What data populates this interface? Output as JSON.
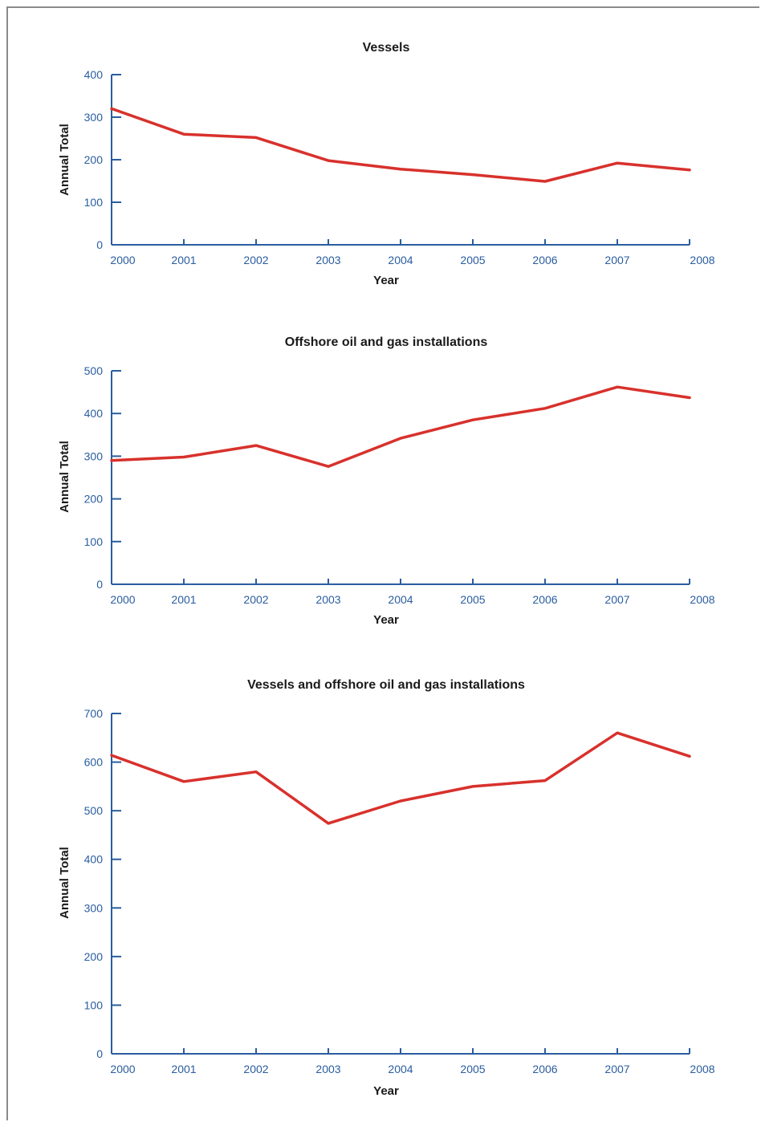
{
  "colors": {
    "line": "#d8312c",
    "axis": "#2a5d9f",
    "text": "#1a1a1a"
  },
  "chart_data": [
    {
      "type": "line",
      "title": "Vessels",
      "xlabel": "Year",
      "ylabel": "Annual Total",
      "x": [
        "2000",
        "2001",
        "2002",
        "2003",
        "2004",
        "2005",
        "2006",
        "2007",
        "2008"
      ],
      "series": [
        {
          "values": [
            320,
            260,
            252,
            198,
            178,
            165,
            149,
            192,
            176
          ]
        }
      ],
      "ylim": [
        0,
        400
      ],
      "yticks": [
        "0",
        "100",
        "200",
        "300",
        "400"
      ]
    },
    {
      "type": "line",
      "title": "Offshore oil and gas installations",
      "xlabel": "Year",
      "ylabel": "Annual Total",
      "x": [
        "2000",
        "2001",
        "2002",
        "2003",
        "2004",
        "2005",
        "2006",
        "2007",
        "2008"
      ],
      "series": [
        {
          "values": [
            290,
            298,
            325,
            276,
            342,
            385,
            412,
            462,
            437
          ]
        }
      ],
      "ylim": [
        0,
        500
      ],
      "yticks": [
        "0",
        "100",
        "200",
        "300",
        "400",
        "500"
      ]
    },
    {
      "type": "line",
      "title": "Vessels and offshore oil and gas installations",
      "xlabel": "Year",
      "ylabel": "Annual Total",
      "x": [
        "2000",
        "2001",
        "2002",
        "2003",
        "2004",
        "2005",
        "2006",
        "2007",
        "2008"
      ],
      "series": [
        {
          "values": [
            614,
            560,
            580,
            474,
            520,
            550,
            562,
            660,
            612
          ]
        }
      ],
      "ylim": [
        0,
        700
      ],
      "yticks": [
        "0",
        "100",
        "200",
        "300",
        "400",
        "500",
        "600",
        "700"
      ]
    }
  ]
}
